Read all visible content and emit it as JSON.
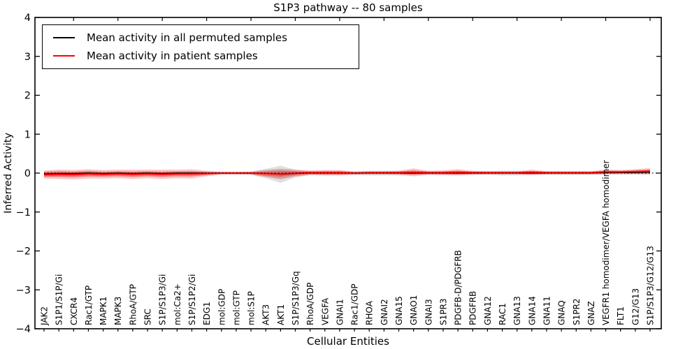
{
  "chart_data": {
    "type": "line",
    "title": "S1P3 pathway -- 80 samples",
    "xlabel": "Cellular Entities",
    "ylabel": "Inferred Activity",
    "ylim": [
      -4,
      4
    ],
    "yticks": [
      4,
      3,
      2,
      1,
      0,
      -1,
      -2,
      -3,
      -4
    ],
    "grid": false,
    "legend_position": "upper left",
    "zero_line": {
      "y": 0,
      "style": "dotted",
      "color": "#000000"
    },
    "categories": [
      "JAK2",
      "S1P1/S1P/Gi",
      "CXCR4",
      "Rac1/GTP",
      "MAPK1",
      "MAPK3",
      "RhoA/GTP",
      "SRC",
      "S1P/S1P3/Gi",
      "mol:Ca2+",
      "S1P/S1P2/Gi",
      "EDG1",
      "mol:GDP",
      "mol:GTP",
      "mol:S1P",
      "AKT3",
      "AKT1",
      "S1P/S1P3/Gq",
      "RhoA/GDP",
      "VEGFA",
      "GNAI1",
      "Rac1/GDP",
      "RHOA",
      "GNAI2",
      "GNA15",
      "GNAO1",
      "GNAI3",
      "S1PR3",
      "PDGFB-D/PDGFRB",
      "PDGFRB",
      "GNA12",
      "RAC1",
      "GNA13",
      "GNA14",
      "GNA11",
      "GNAQ",
      "S1PR2",
      "GNAZ",
      "VEGFR1 homodimer/VEGFA homodimer",
      "FLT1",
      "G12/G13",
      "S1P/S1P3/G12/G13"
    ],
    "series": [
      {
        "name": "Mean activity in all permuted samples",
        "color": "#000000",
        "band_color": "#808080",
        "values": [
          -0.02,
          -0.01,
          -0.01,
          0,
          -0.01,
          0,
          -0.01,
          0,
          -0.01,
          0,
          0,
          0,
          0,
          0,
          0,
          -0.01,
          -0.03,
          -0.01,
          0,
          0,
          0,
          0,
          0,
          0,
          0,
          0,
          0,
          0,
          0,
          0,
          0,
          0,
          0,
          0,
          0,
          0,
          0,
          0,
          0.01,
          0.01,
          0.01,
          0.02
        ],
        "std": [
          0.08,
          0.07,
          0.06,
          0.06,
          0.05,
          0.05,
          0.05,
          0.05,
          0.05,
          0.05,
          0.05,
          0.04,
          0.03,
          0.03,
          0.04,
          0.12,
          0.22,
          0.1,
          0.05,
          0.05,
          0.05,
          0.05,
          0.06,
          0.06,
          0.06,
          0.05,
          0.05,
          0.05,
          0.05,
          0.05,
          0.05,
          0.06,
          0.06,
          0.05,
          0.05,
          0.05,
          0.05,
          0.05,
          0.05,
          0.05,
          0.05,
          0.06
        ]
      },
      {
        "name": "Mean activity in patient samples",
        "color": "#ff0000",
        "band_color": "#ff0000",
        "values": [
          -0.04,
          -0.03,
          -0.04,
          -0.02,
          -0.03,
          -0.02,
          -0.03,
          -0.02,
          -0.03,
          -0.02,
          -0.02,
          -0.01,
          0,
          0,
          0,
          -0.01,
          -0.02,
          0,
          0.01,
          0.01,
          0.01,
          0,
          0.01,
          0.01,
          0.01,
          0.02,
          0.01,
          0.01,
          0.02,
          0.01,
          0.01,
          0.01,
          0.01,
          0.02,
          0.01,
          0.01,
          0.01,
          0.01,
          0.03,
          0.03,
          0.04,
          0.05
        ],
        "std": [
          0.1,
          0.12,
          0.12,
          0.12,
          0.11,
          0.11,
          0.12,
          0.11,
          0.12,
          0.11,
          0.12,
          0.07,
          0.04,
          0.04,
          0.04,
          0.09,
          0.13,
          0.09,
          0.06,
          0.07,
          0.07,
          0.04,
          0.04,
          0.04,
          0.05,
          0.1,
          0.05,
          0.06,
          0.08,
          0.05,
          0.04,
          0.04,
          0.04,
          0.07,
          0.04,
          0.04,
          0.04,
          0.04,
          0.06,
          0.05,
          0.06,
          0.08
        ]
      }
    ]
  }
}
